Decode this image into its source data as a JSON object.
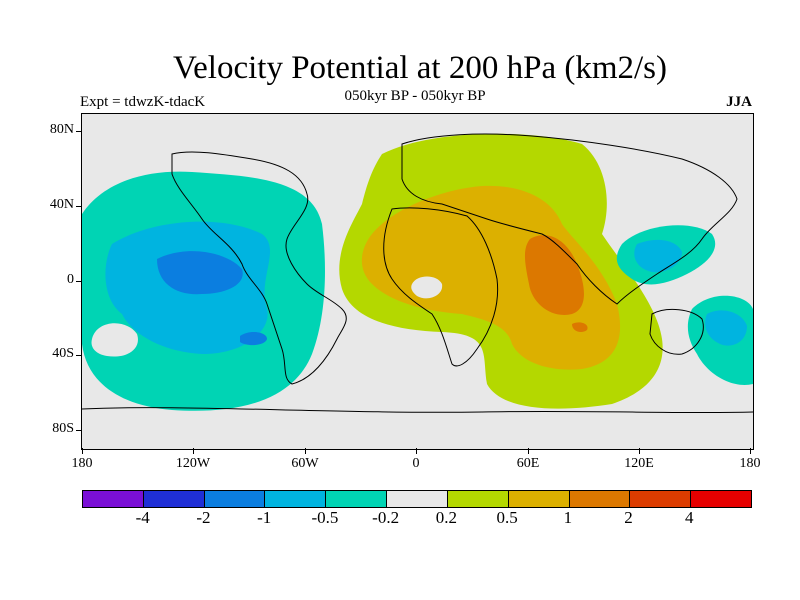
{
  "title": "Velocity Potential at 200 hPa (km2/s)",
  "subtitle": "050kyr BP - 050kyr BP",
  "experiment": "Expt = tdwzK-tdacK",
  "season": "JJA",
  "lat_ticks": [
    "80N",
    "40N",
    "0",
    "40S",
    "80S"
  ],
  "lon_ticks": [
    "180",
    "120W",
    "60W",
    "0",
    "60E",
    "120E",
    "180"
  ],
  "colorbar": {
    "colors": [
      "#7a0fd6",
      "#1f2fd6",
      "#0b7ee0",
      "#00b4e0",
      "#00d4b4",
      "#e8e8e8",
      "#b4d800",
      "#dcb000",
      "#dc7800",
      "#dc3c00",
      "#e60000"
    ],
    "labels": [
      "-4",
      "-2",
      "-1",
      "-0.5",
      "-0.2",
      "0.2",
      "0.5",
      "1",
      "2",
      "4"
    ]
  },
  "chart_data": {
    "type": "heatmap",
    "title": "Velocity Potential at 200 hPa (km2/s)",
    "subtitle": "050kyr BP - 050kyr BP",
    "projection": "cylindrical equidistant",
    "lon_range": [
      -180,
      180
    ],
    "lat_range": [
      -90,
      90
    ],
    "levels": [
      -4,
      -2,
      -1,
      -0.5,
      -0.2,
      0.2,
      0.5,
      1,
      2,
      4
    ],
    "regions": [
      {
        "name": "eastern Pacific negative",
        "level": "-0.5 to -0.2",
        "center": [
          -120,
          0
        ]
      },
      {
        "name": "eastern Pacific core",
        "level": "-1 to -0.5",
        "center": [
          -125,
          5
        ]
      },
      {
        "name": "Africa/Europe/Asia positive",
        "level": "0.2 to 0.5",
        "center": [
          30,
          20
        ]
      },
      {
        "name": "Saharan/Indian positive",
        "level": "0.5 to 1",
        "center": [
          40,
          15
        ]
      },
      {
        "name": "Indian Ocean maximum",
        "level": "1 to 2",
        "center": [
          80,
          5
        ]
      },
      {
        "name": "western Pacific negative",
        "level": "-1 to -0.2",
        "center": [
          130,
          10
        ]
      },
      {
        "name": "Australia east negative",
        "level": "-0.5 to -0.2",
        "center": [
          160,
          -25
        ]
      }
    ]
  }
}
